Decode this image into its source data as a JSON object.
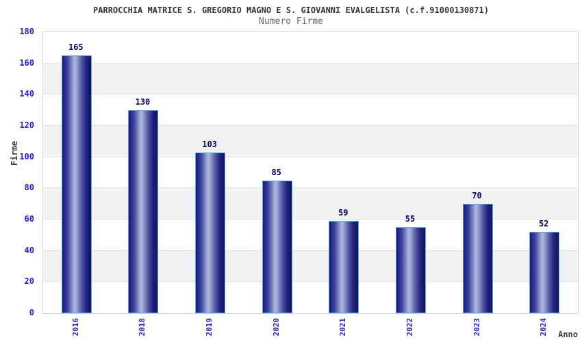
{
  "chart_data": {
    "type": "bar",
    "title": "PARROCCHIA MATRICE S. GREGORIO MAGNO E S. GIOVANNI EVALGELISTA (c.f.91000130871)",
    "subtitle": "Numero Firme",
    "xlabel": "Anno",
    "ylabel": "Firme",
    "categories": [
      "2016",
      "2018",
      "2019",
      "2020",
      "2021",
      "2022",
      "2023",
      "2024"
    ],
    "values": [
      165,
      130,
      103,
      85,
      59,
      55,
      70,
      52
    ],
    "ylim": [
      0,
      180
    ],
    "yticks": [
      0,
      20,
      40,
      60,
      80,
      100,
      120,
      140,
      160,
      180
    ],
    "grid": true,
    "legend": false,
    "band_pattern": "alternating horizontal bands every 20 units, gray on 20-40, 60-80, 100-120, 140-160",
    "colors": {
      "bar_dark": "#181880",
      "bar_highlight": "#b0b8e0",
      "bar_border": "#5aabea",
      "tick_text": "#2222cc",
      "value_label": "#000066",
      "band": "#f2f2f2",
      "gridline": "#e0e0e0",
      "plot_border": "#d4d4d4",
      "title_text": "#333333",
      "subtitle_text": "#666666",
      "axis_label_text": "#404040"
    }
  }
}
